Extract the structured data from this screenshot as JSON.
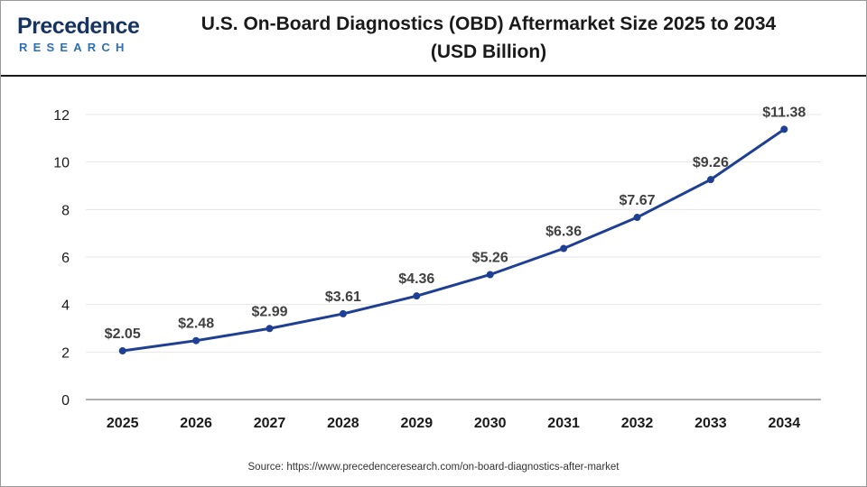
{
  "header": {
    "logo_main": "Precedence",
    "logo_sub": "RESEARCH",
    "title_line1": "U.S. On-Board Diagnostics (OBD) Aftermarket Size 2025 to 2034",
    "title_line2": "(USD Billion)"
  },
  "footer": {
    "source": "Source: https://www.precedenceresearch.com/on-board-diagnostics-after-market"
  },
  "colors": {
    "line": "#1f3f93",
    "marker": "#1f3f93",
    "grid": "#e6e6e6",
    "axis": "#7f7f7f",
    "text": "#404040",
    "brand_dark": "#16345f",
    "brand_accent": "#2d6fb7"
  },
  "chart_data": {
    "type": "line",
    "title": "U.S. On-Board Diagnostics (OBD) Aftermarket Size 2025 to 2034 (USD Billion)",
    "categories": [
      "2025",
      "2026",
      "2027",
      "2028",
      "2029",
      "2030",
      "2031",
      "2032",
      "2033",
      "2034"
    ],
    "series": [
      {
        "values": [
          2.05,
          2.48,
          2.99,
          3.61,
          4.36,
          5.26,
          6.36,
          7.67,
          9.26,
          11.38
        ],
        "labels": [
          "$2.05",
          "$2.48",
          "$2.99",
          "$3.61",
          "$4.36",
          "$5.26",
          "$6.36",
          "$7.67",
          "$9.26",
          "$11.38"
        ]
      }
    ],
    "y_ticks": [
      "0",
      "2",
      "4",
      "6",
      "8",
      "10",
      "12"
    ],
    "ylim": [
      0,
      12
    ],
    "grid": true,
    "legend": "none",
    "xlabel": "",
    "ylabel": ""
  }
}
